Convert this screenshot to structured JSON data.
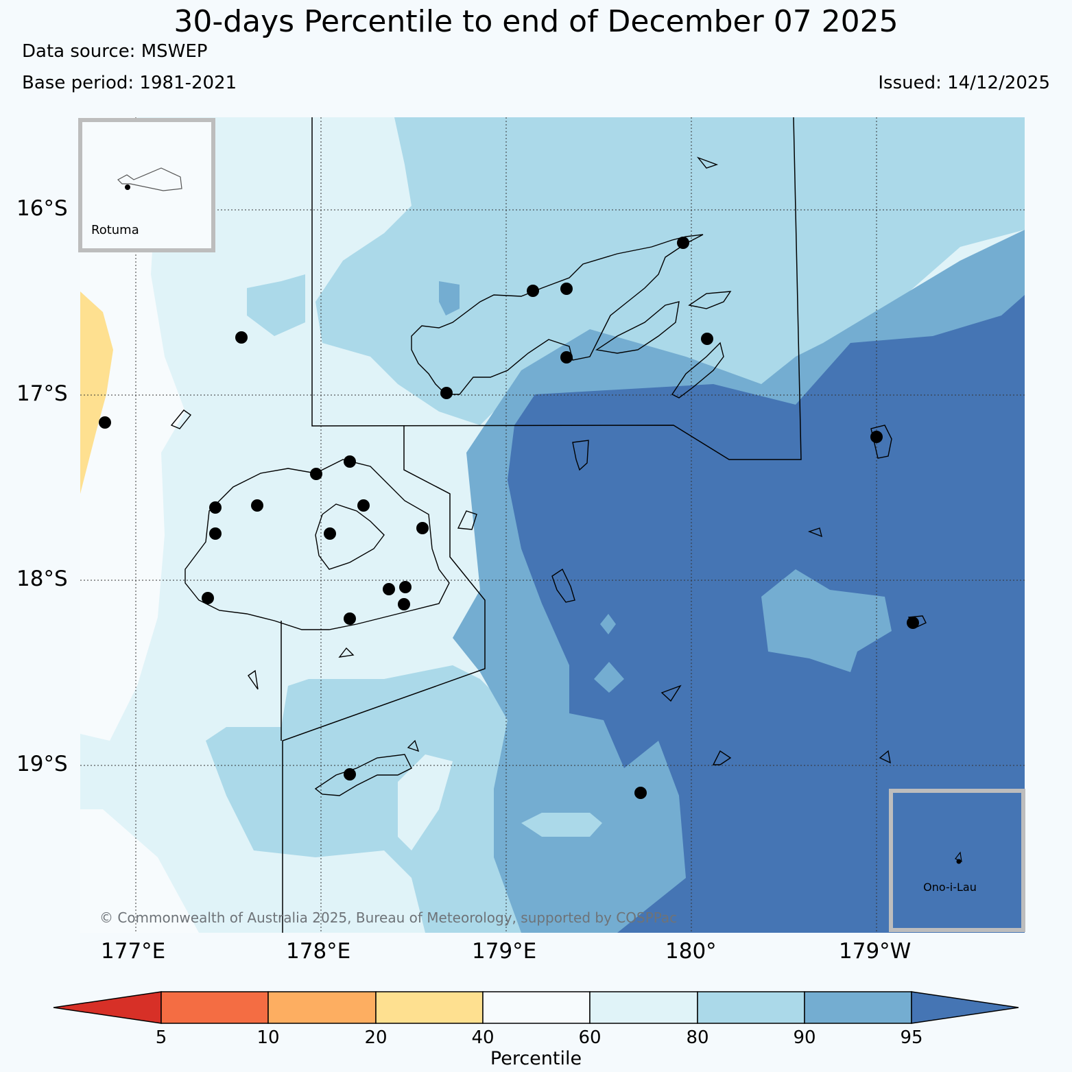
{
  "header": {
    "title": "30-days Percentile to end of December 07 2025",
    "data_source": "Data source: MSWEP",
    "base_period": "Base period: 1981-2021",
    "issued": "Issued: 14/12/2025"
  },
  "map": {
    "lat_ticks": [
      "16°S",
      "17°S",
      "18°S",
      "19°S"
    ],
    "lon_ticks": [
      "177°E",
      "178°E",
      "179°E",
      "180°",
      "179°W"
    ],
    "copyright": "© Commonwealth of Australia 2025, Bureau of Meteorology, supported by COSPPac",
    "insets": {
      "top_left": "Rotuma",
      "bottom_right": "Ono-i-Lau"
    }
  },
  "colorbar": {
    "title": "Percentile",
    "ticks": [
      "5",
      "10",
      "20",
      "40",
      "60",
      "80",
      "90",
      "95"
    ],
    "colors": {
      "below_5": "#d73027",
      "5_10": "#f46d43",
      "10_20": "#fdae61",
      "20_40": "#fee090",
      "40_60": "#f7fbfd",
      "60_80": "#e0f3f8",
      "80_90": "#abd9e9",
      "90_95": "#74add1",
      "above_95": "#4575b4"
    }
  }
}
